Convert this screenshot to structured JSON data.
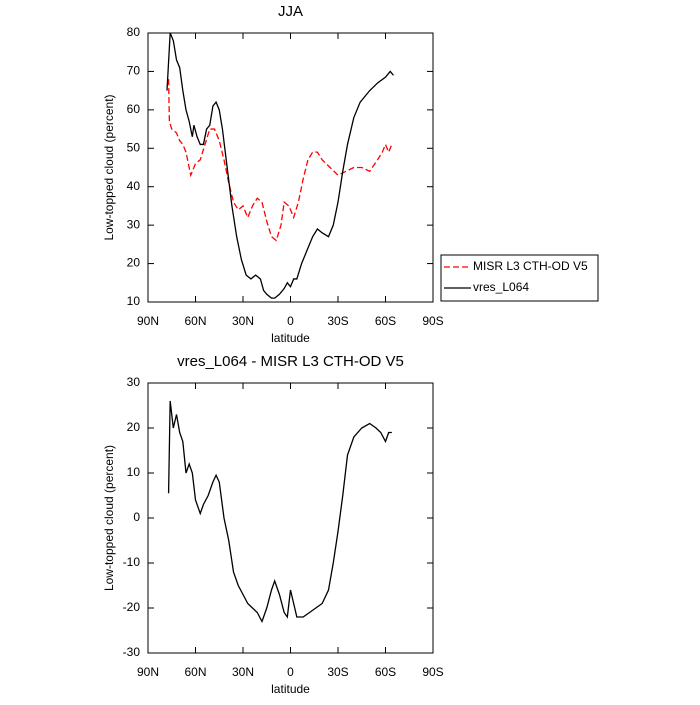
{
  "chart_data": [
    {
      "type": "line",
      "title": "JJA",
      "x_label": "latitude",
      "y_label": "Low-topped cloud (percent)",
      "xlim": [
        90,
        -90
      ],
      "ylim": [
        10,
        80
      ],
      "xticks": [
        {
          "value": 90,
          "label": "90N"
        },
        {
          "value": 60,
          "label": "60N"
        },
        {
          "value": 30,
          "label": "30N"
        },
        0,
        {
          "value": -30,
          "label": "30S"
        },
        {
          "value": -60,
          "label": "60S"
        },
        {
          "value": -90,
          "label": "90S"
        }
      ],
      "yticks": [
        10,
        20,
        30,
        40,
        50,
        60,
        70,
        80
      ],
      "legend": "right",
      "series": [
        {
          "name": "MISR L3 CTH-OD V5",
          "color": "#ff0000",
          "dash": true,
          "x": [
            77,
            76.5,
            75,
            72,
            70,
            68,
            66,
            63,
            60,
            57,
            54,
            51,
            48,
            45,
            42,
            39,
            36,
            33,
            30,
            27,
            24,
            21,
            18,
            15,
            12,
            9,
            6,
            4,
            1,
            -2,
            -5,
            -8,
            -11,
            -14,
            -17,
            -20,
            -25,
            -30,
            -35,
            -40,
            -45,
            -50,
            -55,
            -58,
            -60,
            -62,
            -64
          ],
          "values": [
            68,
            57,
            55,
            54,
            52,
            51,
            49,
            43,
            46,
            47,
            51,
            55,
            55,
            52,
            47,
            41,
            36,
            34,
            35,
            32,
            35,
            37,
            36,
            31,
            27,
            26,
            30,
            36,
            35,
            32,
            36,
            42,
            47,
            49,
            49,
            47,
            45,
            43,
            44,
            45,
            45,
            44,
            47,
            49,
            51,
            49,
            51
          ]
        },
        {
          "name": "vres_L064",
          "color": "#000000",
          "dash": false,
          "x": [
            78,
            76,
            74,
            72,
            70,
            68,
            66,
            64,
            62,
            61,
            59,
            57,
            55,
            53,
            51,
            49,
            47,
            45,
            43,
            40,
            37,
            34,
            31,
            28,
            25,
            22,
            19,
            17,
            15,
            12,
            10,
            7,
            4,
            2,
            0,
            -2,
            -4,
            -7,
            -10,
            -14,
            -17,
            -20,
            -24,
            -27,
            -30,
            -33,
            -36,
            -40,
            -44,
            -50,
            -55,
            -60,
            -63,
            -65
          ],
          "values": [
            65,
            80,
            78,
            73,
            71,
            65,
            60,
            57,
            53,
            56,
            53,
            51,
            51,
            55,
            56,
            61,
            62,
            60,
            55,
            45,
            35,
            27,
            21,
            17,
            16,
            17,
            16,
            13,
            12,
            11,
            11,
            12,
            13.5,
            15,
            14,
            16,
            16,
            20,
            23,
            27,
            29,
            28,
            27,
            30,
            36,
            44,
            51,
            58,
            62,
            65,
            67,
            68.5,
            70,
            69
          ]
        }
      ]
    },
    {
      "type": "line",
      "title": "vres_L064 - MISR L3 CTH-OD V5",
      "x_label": "latitude",
      "y_label": "Low-topped cloud (percent)",
      "xlim": [
        90,
        -90
      ],
      "ylim": [
        -30,
        30
      ],
      "xticks": [
        {
          "value": 90,
          "label": "90N"
        },
        {
          "value": 60,
          "label": "60N"
        },
        {
          "value": 30,
          "label": "30N"
        },
        0,
        {
          "value": -30,
          "label": "30S"
        },
        {
          "value": -60,
          "label": "60S"
        },
        {
          "value": -90,
          "label": "90S"
        }
      ],
      "yticks": [
        -30,
        -20,
        -10,
        0,
        10,
        20,
        30
      ],
      "series": [
        {
          "color": "#000000",
          "dash": false,
          "x": [
            77,
            76,
            74,
            72,
            70,
            68,
            66,
            64,
            62,
            60,
            57,
            55,
            52,
            49,
            47,
            45,
            42,
            39,
            36,
            33,
            30,
            27,
            24,
            21,
            18,
            15,
            12,
            10,
            7,
            4,
            2,
            0,
            -2,
            -4,
            -8,
            -12,
            -16,
            -20,
            -24,
            -27,
            -30,
            -33,
            -36,
            -40,
            -45,
            -50,
            -54,
            -57,
            -60,
            -62,
            -64
          ],
          "values": [
            5.5,
            26,
            20,
            23,
            19,
            17,
            10,
            12,
            10,
            4,
            1,
            3,
            5,
            8,
            9.5,
            8,
            0,
            -5,
            -12,
            -15,
            -17,
            -19,
            -20,
            -21,
            -23,
            -20,
            -16,
            -14,
            -17,
            -21,
            -22,
            -16,
            -19,
            -22,
            -22,
            -21,
            -20,
            -19,
            -16,
            -10,
            -3,
            5,
            14,
            18,
            20,
            21,
            20,
            19,
            17,
            19,
            19
          ]
        }
      ]
    }
  ]
}
